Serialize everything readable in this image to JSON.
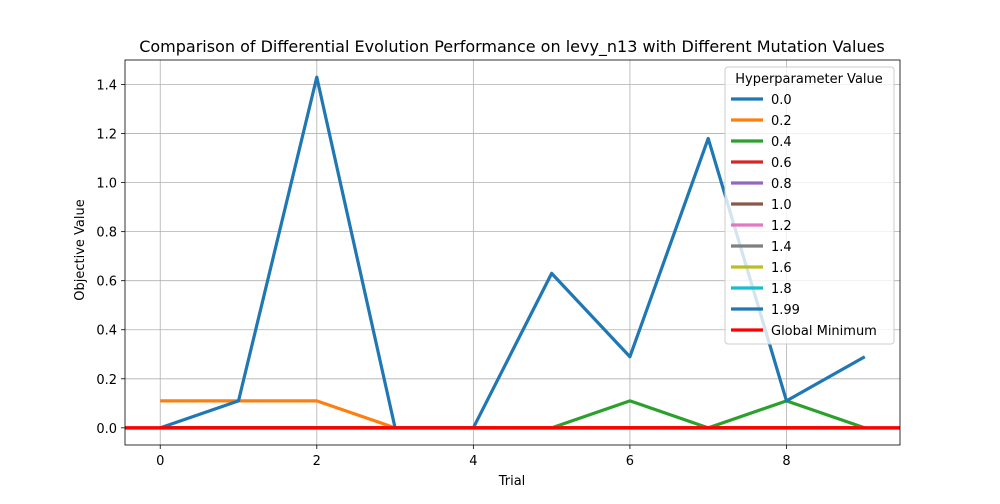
{
  "chart_data": {
    "type": "line",
    "title": "Comparison of Differential Evolution Performance on levy_n13 with Different Mutation Values",
    "xlabel": "Trial",
    "ylabel": "Objective Value",
    "xlim": [
      -0.45,
      9.45
    ],
    "ylim": [
      -0.07,
      1.5
    ],
    "xticks": [
      0,
      2,
      4,
      6,
      8
    ],
    "yticks": [
      0.0,
      0.2,
      0.4,
      0.6,
      0.8,
      1.0,
      1.2,
      1.4
    ],
    "grid": true,
    "legend": {
      "title": "Hyperparameter Value",
      "placement": "top-right"
    },
    "x": [
      0,
      1,
      2,
      3,
      4,
      5,
      6,
      7,
      8,
      9
    ],
    "series": [
      {
        "name": "0.0",
        "color": "#1f77b4",
        "values": [
          0,
          0.11,
          1.43,
          0,
          0,
          0.63,
          0.29,
          1.18,
          0.11,
          0.29
        ]
      },
      {
        "name": "0.2",
        "color": "#ff7f0e",
        "values": [
          0.11,
          0.11,
          0.11,
          0,
          0,
          0,
          0,
          0,
          0,
          0
        ]
      },
      {
        "name": "0.4",
        "color": "#2ca02c",
        "values": [
          0,
          0,
          0,
          0,
          0,
          0,
          0.11,
          0,
          0.11,
          0
        ]
      },
      {
        "name": "0.6",
        "color": "#d62728",
        "values": [
          0,
          0,
          0,
          0,
          0,
          0,
          0,
          0,
          0,
          0
        ]
      },
      {
        "name": "0.8",
        "color": "#9467bd",
        "values": [
          0,
          0,
          0,
          0,
          0,
          0,
          0,
          0,
          0,
          0
        ]
      },
      {
        "name": "1.0",
        "color": "#8c564b",
        "values": [
          0,
          0,
          0,
          0,
          0,
          0,
          0,
          0,
          0,
          0
        ]
      },
      {
        "name": "1.2",
        "color": "#e377c2",
        "values": [
          0,
          0,
          0,
          0,
          0,
          0,
          0,
          0,
          0,
          0
        ]
      },
      {
        "name": "1.4",
        "color": "#7f7f7f",
        "values": [
          0,
          0,
          0,
          0,
          0,
          0,
          0,
          0,
          0,
          0
        ]
      },
      {
        "name": "1.6",
        "color": "#bcbd22",
        "values": [
          0,
          0,
          0,
          0,
          0,
          0,
          0,
          0,
          0,
          0
        ]
      },
      {
        "name": "1.8",
        "color": "#17becf",
        "values": [
          0,
          0,
          0,
          0,
          0,
          0,
          0,
          0,
          0,
          0
        ]
      },
      {
        "name": "1.99",
        "color": "#1f77b4",
        "values": [
          0,
          0,
          0,
          0,
          0,
          0,
          0,
          0,
          0,
          0
        ]
      }
    ],
    "reference_line": {
      "name": "Global Minimum",
      "color": "#ff0000",
      "y": 0
    }
  }
}
